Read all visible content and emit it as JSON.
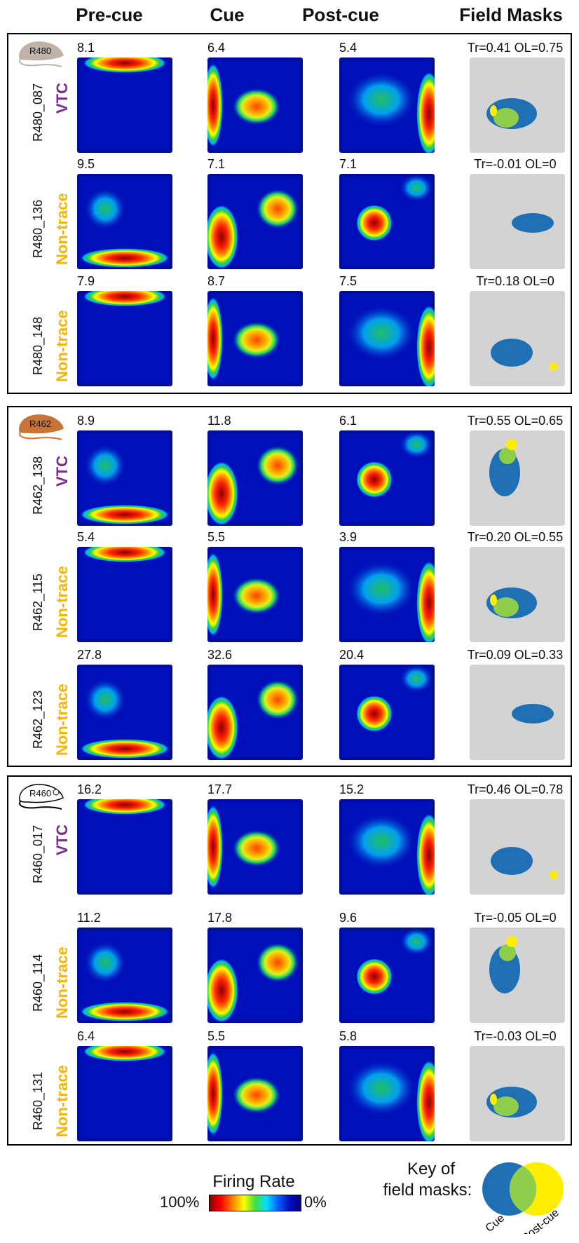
{
  "column_headers": {
    "pre": "Pre-cue",
    "cue": "Cue",
    "post": "Post-cue",
    "masks": "Field Masks"
  },
  "colors": {
    "vtc": "#7b2d8e",
    "non_trace": "#f5b400",
    "cue_mask": "#1f6fb5",
    "post_mask": "#ffee00",
    "overlap_mask": "#8fce4a",
    "mask_bg": "#d3d3d3"
  },
  "rats": [
    {
      "label": "R480",
      "icon": "rat-icon-gray",
      "cells": [
        {
          "id": "R480_087",
          "type": "VTC",
          "peaks": [
            "8.1",
            "6.4",
            "5.4"
          ],
          "stats": "Tr=0.41 OL=0.75"
        },
        {
          "id": "R480_136",
          "type": "Non-trace",
          "peaks": [
            "9.5",
            "7.1",
            "7.1"
          ],
          "stats": "Tr=-0.01 OL=0"
        },
        {
          "id": "R480_148",
          "type": "Non-trace",
          "peaks": [
            "7.9",
            "8.7",
            "7.5"
          ],
          "stats": "Tr=0.18 OL=0"
        }
      ]
    },
    {
      "label": "R462",
      "icon": "rat-icon-brown",
      "cells": [
        {
          "id": "R462_138",
          "type": "VTC",
          "peaks": [
            "8.9",
            "11.8",
            "6.1"
          ],
          "stats": "Tr=0.55 OL=0.65"
        },
        {
          "id": "R462_115",
          "type": "Non-trace",
          "peaks": [
            "5.4",
            "5.5",
            "3.9"
          ],
          "stats": "Tr=0.20 OL=0.55"
        },
        {
          "id": "R462_123",
          "type": "Non-trace",
          "peaks": [
            "27.8",
            "32.6",
            "20.4"
          ],
          "stats": "Tr=0.09 OL=0.33"
        }
      ]
    },
    {
      "label": "R460",
      "icon": "rat-icon-white",
      "cells": [
        {
          "id": "R460_017",
          "type": "VTC",
          "peaks": [
            "16.2",
            "17.7",
            "15.2"
          ],
          "stats": "Tr=0.46 OL=0.78"
        },
        {
          "id": "R460_114",
          "type": "Non-trace",
          "peaks": [
            "11.2",
            "17.8",
            "9.6"
          ],
          "stats": "Tr=-0.05 OL=0"
        },
        {
          "id": "R460_131",
          "type": "Non-trace",
          "peaks": [
            "6.4",
            "5.5",
            "5.8"
          ],
          "stats": "Tr=-0.03 OL=0"
        }
      ]
    }
  ],
  "legend": {
    "firing_rate_title": "Firing Rate",
    "max_label": "100%",
    "min_label": "0%",
    "key_title_line1": "Key of",
    "key_title_line2": "field masks:",
    "key_cue": "Cue",
    "key_post": "Post-cue"
  }
}
